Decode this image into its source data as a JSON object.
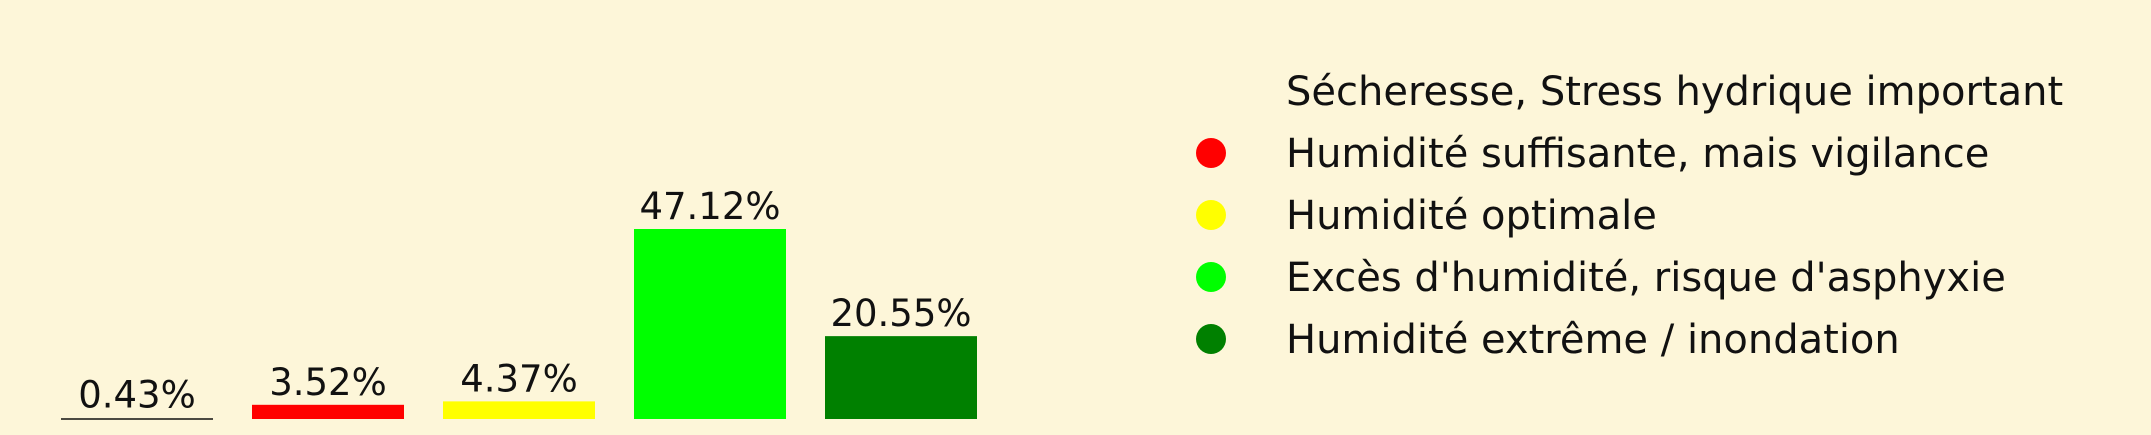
{
  "chart_data": {
    "type": "bar",
    "categories": [
      "Sécheresse, Stress hydrique important",
      "Humidité suffisante, mais vigilance",
      "Humidité optimale",
      "Excès d'humidité, risque d'asphyxie",
      "Humidité extrême / inondation"
    ],
    "values": [
      0.43,
      3.52,
      4.37,
      47.12,
      20.55
    ],
    "value_labels": [
      "0.43%",
      "3.52%",
      "4.37%",
      "47.12%",
      "20.55%"
    ],
    "colors": [
      "#fdf6d9",
      "#ff0000",
      "#ffff00",
      "#00ff00",
      "#008000"
    ],
    "ylim": [
      0,
      47.12
    ],
    "grid": false,
    "legend_position": "right",
    "title": "",
    "xlabel": "",
    "ylabel": ""
  },
  "colors": {
    "background": "#fdf6d9",
    "text": "#111111"
  }
}
